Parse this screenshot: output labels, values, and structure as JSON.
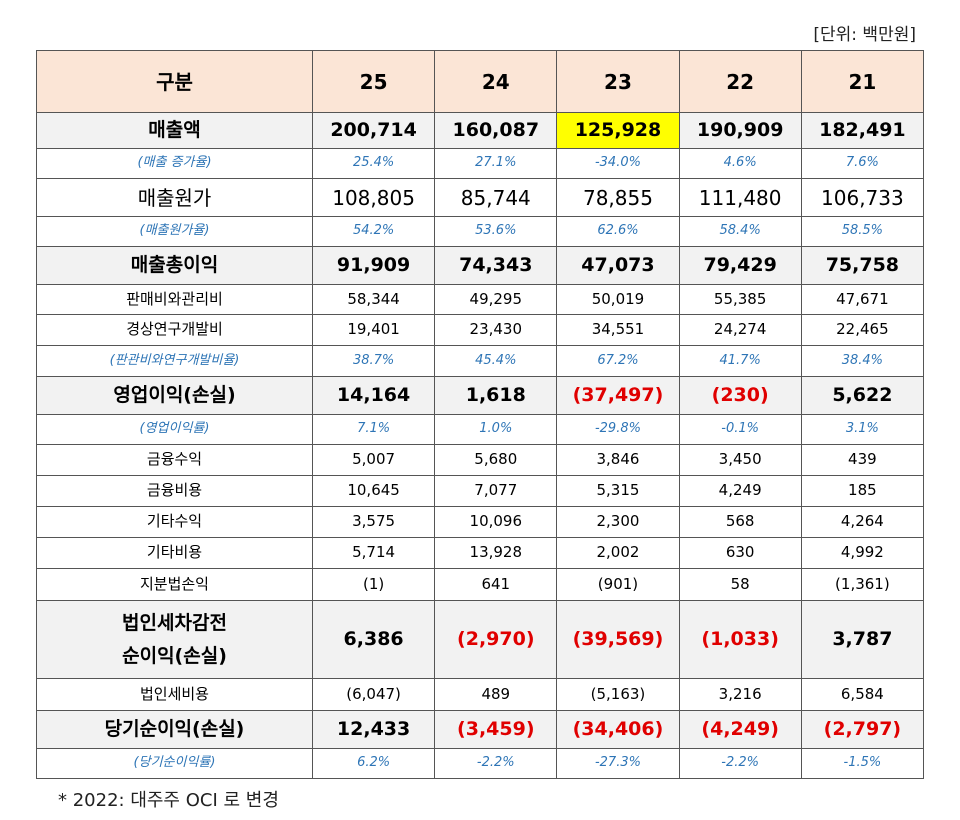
{
  "unit": "[단위: 백만원]",
  "columns": [
    "구분",
    "25",
    "24",
    "23",
    "22",
    "21"
  ],
  "rows": [
    {
      "label": "매출액",
      "values": [
        "200,714",
        "160,087",
        "125,928",
        "190,909",
        "182,491"
      ]
    },
    {
      "label": "(매출 증가율)",
      "values": [
        "25.4%",
        "27.1%",
        "-34.0%",
        "4.6%",
        "7.6%"
      ]
    },
    {
      "label": "매출원가",
      "values": [
        "108,805",
        "85,744",
        "78,855",
        "111,480",
        "106,733"
      ]
    },
    {
      "label": "(매출원가율)",
      "values": [
        "54.2%",
        "53.6%",
        "62.6%",
        "58.4%",
        "58.5%"
      ]
    },
    {
      "label": "매출총이익",
      "values": [
        "91,909",
        "74,343",
        "47,073",
        "79,429",
        "75,758"
      ]
    },
    {
      "label": "판매비와관리비",
      "values": [
        "58,344",
        "49,295",
        "50,019",
        "55,385",
        "47,671"
      ]
    },
    {
      "label": "경상연구개발비",
      "values": [
        "19,401",
        "23,430",
        "34,551",
        "24,274",
        "22,465"
      ]
    },
    {
      "label": "(판관비와연구개발비율)",
      "values": [
        "38.7%",
        "45.4%",
        "67.2%",
        "41.7%",
        "38.4%"
      ]
    },
    {
      "label": "영업이익(손실)",
      "values": [
        "14,164",
        "1,618",
        "(37,497)",
        "(230)",
        "5,622"
      ]
    },
    {
      "label": "(영업이익률)",
      "values": [
        "7.1%",
        "1.0%",
        "-29.8%",
        "-0.1%",
        "3.1%"
      ]
    },
    {
      "label": "금융수익",
      "values": [
        "5,007",
        "5,680",
        "3,846",
        "3,450",
        "439"
      ]
    },
    {
      "label": "금융비용",
      "values": [
        "10,645",
        "7,077",
        "5,315",
        "4,249",
        "185"
      ]
    },
    {
      "label": "기타수익",
      "values": [
        "3,575",
        "10,096",
        "2,300",
        "568",
        "4,264"
      ]
    },
    {
      "label": "기타비용",
      "values": [
        "5,714",
        "13,928",
        "2,002",
        "630",
        "4,992"
      ]
    },
    {
      "label": "지분법손익",
      "values": [
        "(1)",
        "641",
        "(901)",
        "58",
        "(1,361)"
      ]
    },
    {
      "label": "법인세차감전\n순이익(손실)",
      "values": [
        "6,386",
        "(2,970)",
        "(39,569)",
        "(1,033)",
        "3,787"
      ]
    },
    {
      "label": "법인세비용",
      "values": [
        "(6,047)",
        "489",
        "(5,163)",
        "3,216",
        "6,584"
      ]
    },
    {
      "label": "당기순이익(손실)",
      "values": [
        "12,433",
        "(3,459)",
        "(34,406)",
        "(4,249)",
        "(2,797)"
      ]
    },
    {
      "label": "(당기순이익률)",
      "values": [
        "6.2%",
        "-2.2%",
        "-27.3%",
        "-2.2%",
        "-1.5%"
      ]
    }
  ],
  "footnote": "* 2022: 대주주 OCI 로 변경"
}
